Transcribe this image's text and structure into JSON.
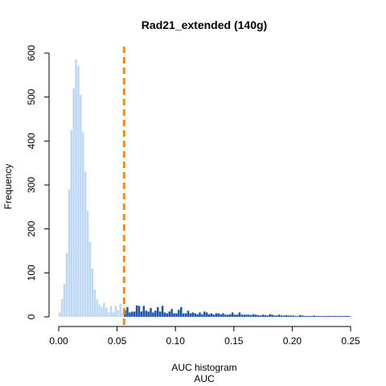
{
  "chart_data": {
    "type": "bar",
    "title": "Rad21_extended (140g)",
    "xlabel": "AUC histogram",
    "xlabel2": "AUC",
    "ylabel": "Frequency",
    "xlim": [
      0.0,
      0.25
    ],
    "ylim": [
      0,
      600
    ],
    "x_ticks": [
      "0.00",
      "0.05",
      "0.10",
      "0.15",
      "0.20",
      "0.25"
    ],
    "y_ticks": [
      "0",
      "100",
      "200",
      "300",
      "400",
      "500",
      "600"
    ],
    "bin_start": 0.0,
    "bin_width": 0.002,
    "counts": [
      10,
      40,
      75,
      145,
      290,
      425,
      520,
      585,
      570,
      505,
      420,
      330,
      240,
      170,
      110,
      62,
      40,
      28,
      22,
      32,
      20,
      10,
      25,
      10,
      25,
      15,
      30,
      8,
      15,
      22,
      10,
      12,
      12,
      26,
      25,
      12,
      25,
      14,
      12,
      20,
      10,
      14,
      22,
      12,
      25,
      10,
      8,
      12,
      18,
      8,
      8,
      16,
      22,
      8,
      8,
      14,
      8,
      10,
      8,
      6,
      10,
      6,
      12,
      10,
      6,
      8,
      5,
      8,
      8,
      6,
      8,
      5,
      5,
      6,
      10,
      5,
      5,
      10,
      5,
      5,
      5,
      5,
      4,
      6,
      5,
      4,
      3,
      5,
      4,
      3,
      6,
      5,
      3,
      3,
      5,
      3,
      3,
      4,
      3,
      3,
      3,
      2,
      2,
      4,
      3,
      2,
      2,
      2,
      2,
      3,
      2,
      2,
      2,
      2,
      2,
      2,
      2,
      2,
      2,
      2,
      2,
      2,
      2,
      2,
      2
    ],
    "threshold": 0.056,
    "colors": {
      "below_threshold": "#bdd7f5",
      "above_threshold": "#1f54a8",
      "threshold_line": "#ff8c00"
    }
  }
}
